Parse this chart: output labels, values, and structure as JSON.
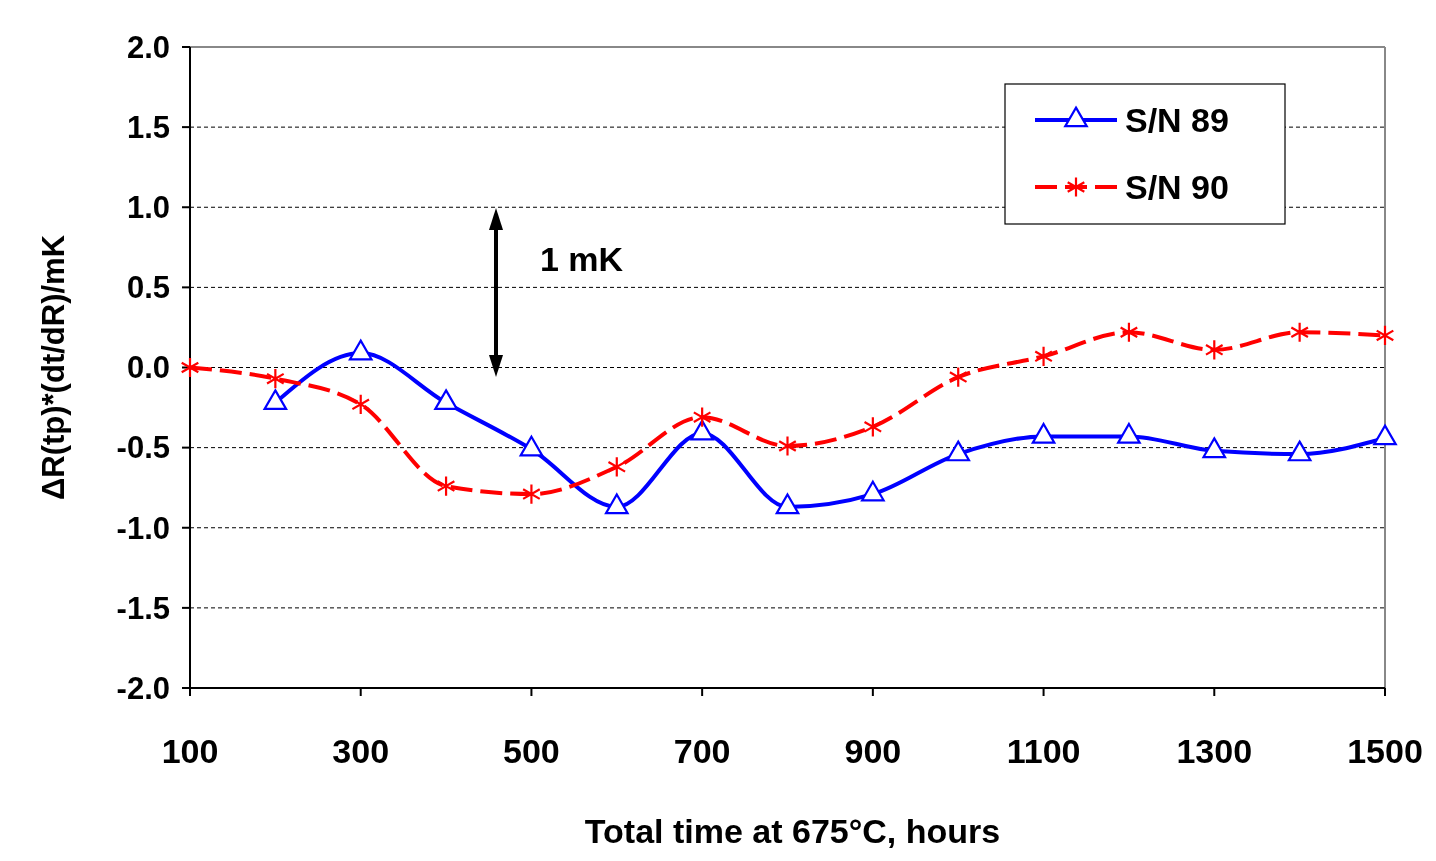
{
  "chart_data": {
    "type": "line",
    "xlabel": "Total time at 675°C, hours",
    "ylabel": "ΔR(tp)*(dt/dR)/mK",
    "x": [
      100,
      200,
      300,
      400,
      500,
      600,
      700,
      800,
      900,
      1000,
      1100,
      1200,
      1300,
      1400,
      1500
    ],
    "series": [
      {
        "name": "S/N 89",
        "color": "#0000ff",
        "marker": "triangle",
        "line_style": "solid",
        "values": [
          null,
          -0.22,
          0.09,
          -0.22,
          -0.51,
          -0.87,
          -0.41,
          -0.87,
          -0.79,
          -0.54,
          -0.43,
          -0.43,
          -0.52,
          -0.54,
          -0.44
        ]
      },
      {
        "name": "S/N 90",
        "color": "#ff0000",
        "marker": "cross",
        "line_style": "dashed",
        "values": [
          0,
          -0.07,
          -0.23,
          -0.74,
          -0.79,
          -0.62,
          -0.31,
          -0.49,
          -0.37,
          -0.06,
          0.07,
          0.22,
          0.11,
          0.22,
          0.2
        ]
      }
    ],
    "xlim": [
      100,
      1500
    ],
    "xticks": [
      100,
      300,
      500,
      700,
      900,
      1100,
      1300,
      1500
    ],
    "ylim": [
      -2,
      2
    ],
    "yticks": [
      {
        "value": -2,
        "label": "-2.0"
      },
      {
        "value": -1.5,
        "label": "-1.5"
      },
      {
        "value": -1,
        "label": "-1.0"
      },
      {
        "value": -0.5,
        "label": "-0.5"
      },
      {
        "value": 0,
        "label": "0.0"
      },
      {
        "value": 0.5,
        "label": "0.5"
      },
      {
        "value": 1,
        "label": "1.0"
      },
      {
        "value": 1.5,
        "label": "1.5"
      },
      {
        "value": 2,
        "label": "2.0"
      }
    ],
    "grid": "y",
    "legend": "top right",
    "annotations": [
      "1 mK"
    ]
  }
}
